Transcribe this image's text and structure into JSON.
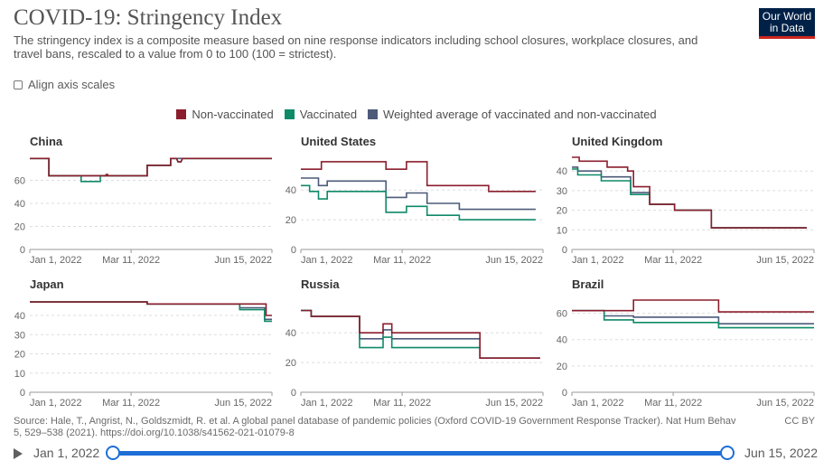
{
  "header": {
    "title": "COVID-19: Stringency Index",
    "subtitle": "The stringency index is a composite measure based on nine response indicators including school closures, workplace closures, and travel bans, rescaled to a value from 0 to 100 (100 = strictest).",
    "logo_line1": "Our World",
    "logo_line2": "in Data"
  },
  "controls": {
    "align_label": "Align axis scales"
  },
  "legend": [
    {
      "label": "Non-vaccinated",
      "color": "#8b1e2d"
    },
    {
      "label": "Vaccinated",
      "color": "#0f8a68"
    },
    {
      "label": "Weighted average of vaccinated and non-vaccinated",
      "color": "#4d5a7a"
    }
  ],
  "footer": {
    "source": "Source: Hale, T., Angrist, N., Goldszmidt, R. et al. A global panel database of pandemic policies (Oxford COVID-19 Government Response Tracker). Nat Hum Behav 5, 529–538 (2021). https://doi.org/10.1038/s41562-021-01079-8",
    "license": "CC BY"
  },
  "timeline": {
    "start_label": "Jan 1, 2022",
    "end_label": "Jun 15, 2022"
  },
  "chart_data": [
    {
      "type": "line",
      "title": "China",
      "x_ticks": [
        "Jan 1, 2022",
        "Mar 11, 2022",
        "Jun 15, 2022"
      ],
      "ylim": [
        0,
        80
      ],
      "y_ticks": [
        0,
        20,
        40,
        60
      ],
      "series": [
        {
          "name": "Non-vaccinated",
          "points": [
            [
              0,
              79
            ],
            [
              13,
              79
            ],
            [
              13,
              64
            ],
            [
              52,
              64
            ],
            [
              52,
              65
            ],
            [
              53,
              65
            ],
            [
              53,
              64
            ],
            [
              80,
              64
            ],
            [
              80,
              73
            ],
            [
              96,
              73
            ],
            [
              96,
              79
            ],
            [
              100,
              79
            ],
            [
              101,
              76
            ],
            [
              103,
              76
            ],
            [
              104,
              79
            ],
            [
              165,
              79
            ]
          ]
        },
        {
          "name": "Vaccinated",
          "points": [
            [
              0,
              79
            ],
            [
              13,
              79
            ],
            [
              13,
              64
            ],
            [
              35,
              64
            ],
            [
              35,
              59
            ],
            [
              48,
              59
            ],
            [
              48,
              64
            ],
            [
              80,
              64
            ],
            [
              80,
              73
            ],
            [
              96,
              73
            ],
            [
              96,
              79
            ],
            [
              100,
              79
            ],
            [
              101,
              76
            ],
            [
              103,
              76
            ],
            [
              104,
              79
            ],
            [
              165,
              79
            ]
          ]
        },
        {
          "name": "Weighted average of vaccinated and non-vaccinated",
          "points": [
            [
              0,
              79
            ],
            [
              13,
              79
            ],
            [
              13,
              64
            ],
            [
              80,
              64
            ],
            [
              80,
              73
            ],
            [
              96,
              73
            ],
            [
              96,
              79
            ],
            [
              165,
              79
            ]
          ]
        }
      ]
    },
    {
      "type": "line",
      "title": "United States",
      "x_ticks": [
        "Jan 1, 2022",
        "Mar 11, 2022",
        "Jun 15, 2022"
      ],
      "ylim": [
        0,
        62
      ],
      "y_ticks": [
        0,
        20,
        40
      ],
      "series": [
        {
          "name": "Non-vaccinated",
          "points": [
            [
              0,
              54
            ],
            [
              14,
              54
            ],
            [
              14,
              59
            ],
            [
              58,
              59
            ],
            [
              58,
              54
            ],
            [
              72,
              54
            ],
            [
              72,
              59
            ],
            [
              86,
              59
            ],
            [
              86,
              43
            ],
            [
              128,
              43
            ],
            [
              128,
              39
            ],
            [
              160,
              39
            ]
          ]
        },
        {
          "name": "Vaccinated",
          "points": [
            [
              0,
              43
            ],
            [
              6,
              43
            ],
            [
              6,
              39
            ],
            [
              12,
              39
            ],
            [
              12,
              34
            ],
            [
              18,
              34
            ],
            [
              18,
              39
            ],
            [
              58,
              39
            ],
            [
              58,
              25
            ],
            [
              72,
              25
            ],
            [
              72,
              29
            ],
            [
              86,
              29
            ],
            [
              86,
              23
            ],
            [
              108,
              23
            ],
            [
              108,
              20
            ],
            [
              160,
              20
            ]
          ]
        },
        {
          "name": "Weighted average of vaccinated and non-vaccinated",
          "points": [
            [
              0,
              48
            ],
            [
              12,
              48
            ],
            [
              12,
              43
            ],
            [
              18,
              43
            ],
            [
              18,
              46
            ],
            [
              58,
              46
            ],
            [
              58,
              35
            ],
            [
              72,
              35
            ],
            [
              72,
              38
            ],
            [
              86,
              38
            ],
            [
              86,
              31
            ],
            [
              108,
              31
            ],
            [
              108,
              27
            ],
            [
              160,
              27
            ]
          ]
        }
      ]
    },
    {
      "type": "line",
      "title": "United Kingdom",
      "x_ticks": [
        "Jan 1, 2022",
        "Mar 11, 2022",
        "Jun 15, 2022"
      ],
      "ylim": [
        0,
        47
      ],
      "y_ticks": [
        0,
        10,
        20,
        30,
        40
      ],
      "series": [
        {
          "name": "Non-vaccinated",
          "points": [
            [
              0,
              47
            ],
            [
              5,
              47
            ],
            [
              5,
              45
            ],
            [
              24,
              45
            ],
            [
              24,
              42
            ],
            [
              38,
              42
            ],
            [
              38,
              40
            ],
            [
              42,
              40
            ],
            [
              42,
              32
            ],
            [
              53,
              32
            ],
            [
              53,
              23
            ],
            [
              70,
              23
            ],
            [
              70,
              20
            ],
            [
              95,
              20
            ],
            [
              95,
              11
            ],
            [
              160,
              11
            ]
          ]
        },
        {
          "name": "Vaccinated",
          "points": [
            [
              0,
              41
            ],
            [
              4,
              41
            ],
            [
              4,
              38
            ],
            [
              20,
              38
            ],
            [
              20,
              35
            ],
            [
              40,
              35
            ],
            [
              40,
              28
            ],
            [
              53,
              28
            ],
            [
              53,
              23
            ],
            [
              70,
              23
            ],
            [
              70,
              20
            ],
            [
              95,
              20
            ],
            [
              95,
              11
            ],
            [
              160,
              11
            ]
          ]
        },
        {
          "name": "Weighted average of vaccinated and non-vaccinated",
          "points": [
            [
              0,
              42
            ],
            [
              4,
              42
            ],
            [
              4,
              40
            ],
            [
              20,
              40
            ],
            [
              20,
              37
            ],
            [
              40,
              37
            ],
            [
              40,
              29
            ],
            [
              53,
              29
            ],
            [
              53,
              23
            ],
            [
              70,
              23
            ],
            [
              70,
              20
            ],
            [
              95,
              20
            ],
            [
              95,
              11
            ],
            [
              160,
              11
            ]
          ]
        }
      ]
    },
    {
      "type": "line",
      "title": "Japan",
      "x_ticks": [
        "Jan 1, 2022",
        "Mar 11, 2022",
        "Jun 15, 2022"
      ],
      "ylim": [
        0,
        48
      ],
      "y_ticks": [
        0,
        10,
        20,
        30,
        40
      ],
      "series": [
        {
          "name": "Non-vaccinated",
          "points": [
            [
              0,
              47
            ],
            [
              80,
              47
            ],
            [
              80,
              46
            ],
            [
              161,
              46
            ],
            [
              161,
              40
            ],
            [
              165,
              40
            ]
          ]
        },
        {
          "name": "Vaccinated",
          "points": [
            [
              0,
              47
            ],
            [
              80,
              47
            ],
            [
              80,
              46
            ],
            [
              143,
              46
            ],
            [
              143,
              43
            ],
            [
              160,
              43
            ],
            [
              160,
              37
            ],
            [
              165,
              37
            ]
          ]
        },
        {
          "name": "Weighted average of vaccinated and non-vaccinated",
          "points": [
            [
              0,
              47
            ],
            [
              80,
              47
            ],
            [
              80,
              46
            ],
            [
              143,
              46
            ],
            [
              143,
              44
            ],
            [
              160,
              44
            ],
            [
              160,
              38
            ],
            [
              165,
              38
            ]
          ]
        }
      ]
    },
    {
      "type": "line",
      "title": "Russia",
      "x_ticks": [
        "Jan 1, 2022",
        "Mar 11, 2022",
        "Jun 15, 2022"
      ],
      "ylim": [
        0,
        62
      ],
      "y_ticks": [
        0,
        20,
        40
      ],
      "series": [
        {
          "name": "Non-vaccinated",
          "points": [
            [
              0,
              55
            ],
            [
              7,
              55
            ],
            [
              7,
              51
            ],
            [
              40,
              51
            ],
            [
              40,
              40
            ],
            [
              56,
              40
            ],
            [
              56,
              46
            ],
            [
              62,
              46
            ],
            [
              62,
              40
            ],
            [
              122,
              40
            ],
            [
              122,
              23
            ],
            [
              163,
              23
            ]
          ]
        },
        {
          "name": "Vaccinated",
          "points": [
            [
              0,
              55
            ],
            [
              7,
              55
            ],
            [
              7,
              51
            ],
            [
              40,
              51
            ],
            [
              40,
              30
            ],
            [
              56,
              30
            ],
            [
              56,
              37
            ],
            [
              62,
              37
            ],
            [
              62,
              30
            ],
            [
              122,
              30
            ],
            [
              122,
              23
            ],
            [
              163,
              23
            ]
          ]
        },
        {
          "name": "Weighted average of vaccinated and non-vaccinated",
          "points": [
            [
              0,
              55
            ],
            [
              7,
              55
            ],
            [
              7,
              51
            ],
            [
              40,
              51
            ],
            [
              40,
              36
            ],
            [
              56,
              36
            ],
            [
              56,
              42
            ],
            [
              62,
              42
            ],
            [
              62,
              36
            ],
            [
              122,
              36
            ],
            [
              122,
              23
            ],
            [
              163,
              23
            ]
          ]
        }
      ]
    },
    {
      "type": "line",
      "title": "Brazil",
      "x_ticks": [
        "Jan 1, 2022",
        "Mar 11, 2022",
        "Jun 15, 2022"
      ],
      "ylim": [
        0,
        70
      ],
      "y_ticks": [
        0,
        20,
        40,
        60
      ],
      "series": [
        {
          "name": "Non-vaccinated",
          "points": [
            [
              0,
              62
            ],
            [
              42,
              62
            ],
            [
              42,
              70
            ],
            [
              100,
              70
            ],
            [
              100,
              61
            ],
            [
              165,
              61
            ]
          ]
        },
        {
          "name": "Vaccinated",
          "points": [
            [
              0,
              62
            ],
            [
              22,
              62
            ],
            [
              22,
              55
            ],
            [
              42,
              55
            ],
            [
              42,
              53
            ],
            [
              100,
              53
            ],
            [
              100,
              49
            ],
            [
              165,
              49
            ]
          ]
        },
        {
          "name": "Weighted average of vaccinated and non-vaccinated",
          "points": [
            [
              0,
              62
            ],
            [
              22,
              62
            ],
            [
              22,
              58
            ],
            [
              42,
              58
            ],
            [
              42,
              57
            ],
            [
              100,
              57
            ],
            [
              100,
              52
            ],
            [
              165,
              52
            ]
          ]
        }
      ]
    }
  ]
}
